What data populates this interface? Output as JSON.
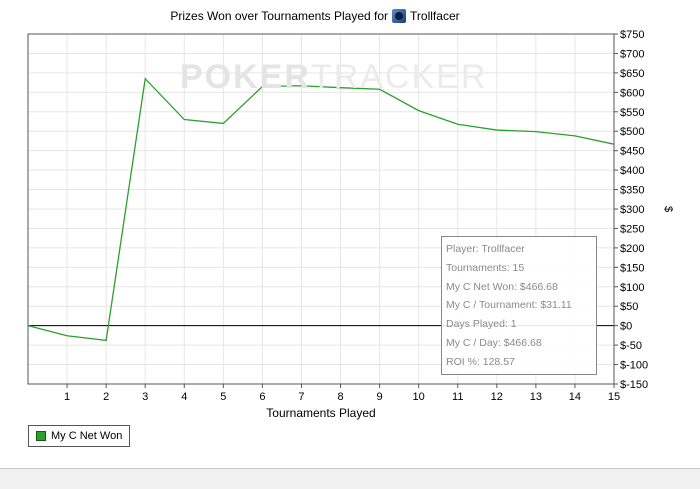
{
  "chart_data": {
    "type": "line",
    "title": "Prizes Won over Tournaments Played for",
    "player_name": "Trollfacer",
    "xlabel": "Tournaments Played",
    "ylabel": "$",
    "x": [
      0,
      1,
      2,
      3,
      4,
      5,
      6,
      7,
      8,
      9,
      10,
      11,
      12,
      13,
      14,
      15
    ],
    "xlim": [
      0,
      15
    ],
    "x_tick_labels": [
      "1",
      "2",
      "3",
      "4",
      "5",
      "6",
      "7",
      "8",
      "9",
      "10",
      "11",
      "12",
      "13",
      "14",
      "15"
    ],
    "ylim": [
      -150,
      750
    ],
    "y_tick_labels": [
      "$750",
      "$700",
      "$650",
      "$600",
      "$550",
      "$500",
      "$450",
      "$400",
      "$350",
      "$300",
      "$250",
      "$200",
      "$150",
      "$100",
      "$50",
      "$0",
      "$-50",
      "$-100",
      "$-150"
    ],
    "series": [
      {
        "name": "My C Net Won",
        "color": "#2ca02c",
        "values": [
          0,
          -26,
          -38,
          635,
          530,
          520,
          615,
          617,
          612,
          608,
          553,
          518,
          503,
          499,
          488,
          466.68
        ]
      }
    ],
    "grid": true,
    "legend_position": "bottom-left",
    "watermark": {
      "bold": "POKER",
      "light": "TRACKER"
    }
  },
  "tooltip": {
    "lines": [
      "Player: Trollfacer",
      "Tournaments: 15",
      "My C Net Won: $466.68",
      "My C / Tournament: $31.11",
      "Days Played: 1",
      "My C / Day: $466.68",
      "ROI %: 128.57"
    ]
  }
}
